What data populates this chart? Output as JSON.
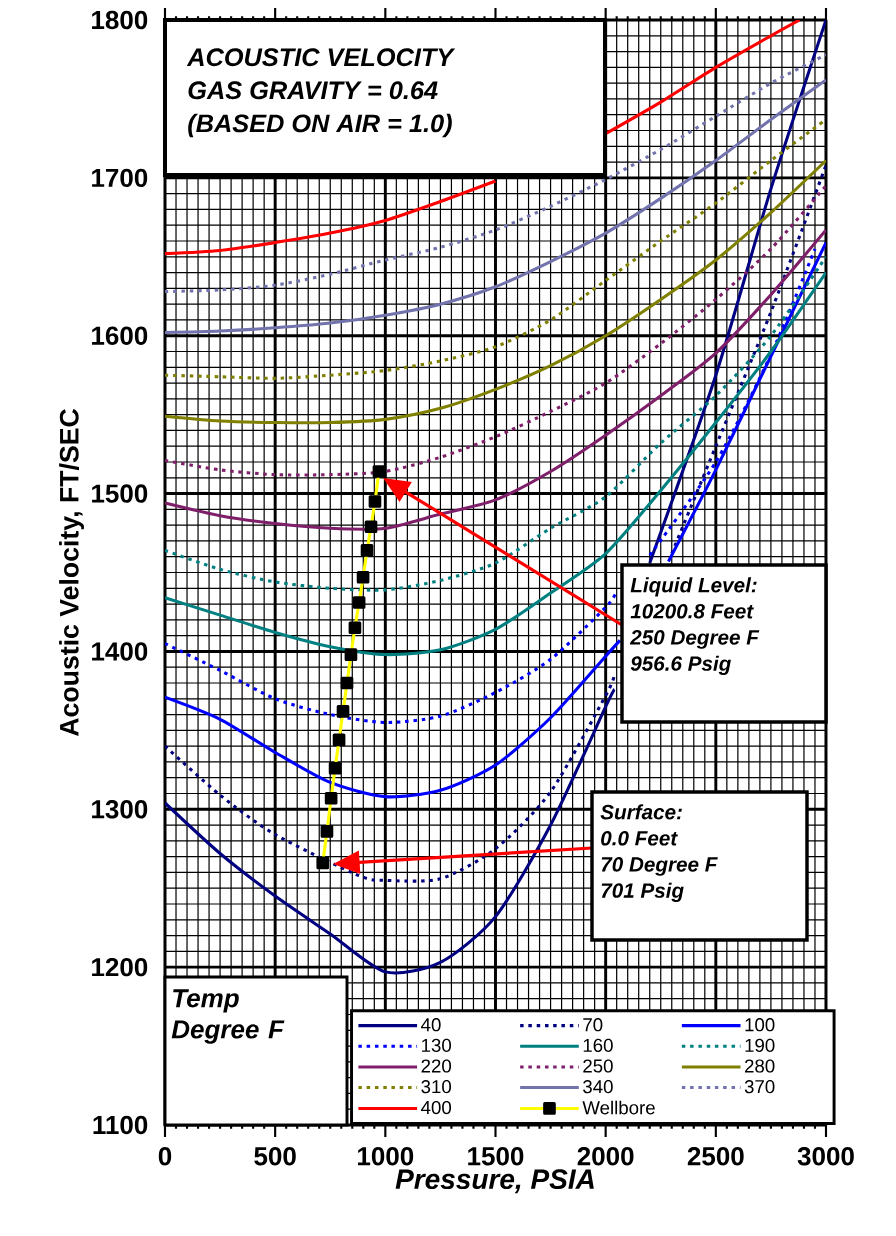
{
  "chart_data": {
    "type": "line",
    "title": "ACOUSTIC VELOCITY",
    "subtitle": "GAS GRAVITY = 0.64",
    "annotations": [
      "(BASED ON AIR = 1.0)",
      {
        "text": "Liquid Level:"
      },
      "10200.8 Feet",
      "250 Degree F",
      "956.6 Psig",
      {
        "text": "Surface:"
      },
      "0.0 Feet",
      "70 Degree F",
      "701 Psig"
    ],
    "xlabel": "Pressure, PSIA",
    "ylabel": "Acoustic Velocity, FT/SEC",
    "legend_title": "Temp Degree F",
    "xlim": [
      0,
      3000
    ],
    "ylim": [
      1100,
      1800
    ],
    "xticks": [
      0,
      500,
      1000,
      1500,
      2000,
      2500,
      3000
    ],
    "yticks": [
      1100,
      1200,
      1300,
      1400,
      1500,
      1600,
      1700,
      1800
    ],
    "grid": true,
    "legend": "bottom",
    "marker": "none",
    "line_style": "solid",
    "series": [
      {
        "name": "40",
        "color": "#000080",
        "x": [
          0,
          250,
          500,
          750,
          1000,
          1250,
          1500,
          1750,
          2000,
          2040,
          2130,
          2200,
          2500,
          2750,
          3000
        ],
        "values": [
          1304,
          1272,
          1245,
          1221,
          1197,
          1203,
          1232,
          1290,
          1365,
          1376,
          null,
          1456,
          1575,
          1693,
          1800
        ]
      },
      {
        "name": "70",
        "color": "#000080",
        "line_style": "dotted",
        "x": [
          0,
          250,
          500,
          880,
          1000,
          1250,
          1500,
          1750,
          2000,
          2040,
          2150,
          2300,
          2500,
          2750,
          3000
        ],
        "values": [
          1340,
          1309,
          1284,
          1258,
          1255,
          1256,
          1275,
          1311,
          1372,
          1385,
          null,
          1462,
          1530,
          1615,
          1708
        ]
      },
      {
        "name": "100",
        "color": "#0000ff",
        "x": [
          0,
          250,
          500,
          750,
          1000,
          1250,
          1500,
          1750,
          2000,
          2065,
          2150,
          2285,
          2500,
          2750,
          3000
        ],
        "values": [
          1371,
          1357,
          1336,
          1317,
          1308,
          1312,
          1328,
          1358,
          1397,
          1407,
          null,
          1457,
          1515,
          1587,
          1659
        ]
      },
      {
        "name": "130",
        "color": "#0000ff",
        "line_style": "dotted",
        "x": [
          0,
          250,
          500,
          750,
          1000,
          1250,
          1500,
          1750,
          2000,
          2050,
          2150,
          2200,
          2500,
          2750,
          2950
        ],
        "values": [
          1405,
          1388,
          1370,
          1360,
          1355,
          1359,
          1374,
          1395,
          1428,
          1438,
          null,
          1461,
          1520,
          1588,
          1655
        ]
      },
      {
        "name": "160",
        "color": "#008080",
        "x": [
          0,
          250,
          500,
          750,
          1000,
          1250,
          1500,
          1750,
          2000,
          2250,
          2500,
          2750,
          3000
        ],
        "values": [
          1434,
          1423,
          1412,
          1403,
          1398,
          1401,
          1414,
          1437,
          1462,
          1502,
          1545,
          1590,
          1640
        ]
      },
      {
        "name": "190",
        "color": "#008080",
        "line_style": "dotted",
        "x": [
          0,
          250,
          500,
          750,
          1000,
          1250,
          1500,
          1750,
          2000,
          2250,
          2500,
          2750,
          3000
        ],
        "values": [
          1464,
          1452,
          1444,
          1440,
          1439,
          1445,
          1456,
          1478,
          1498,
          1532,
          1562,
          1600,
          1650
        ]
      },
      {
        "name": "220",
        "color": "#7f1f6a",
        "x": [
          0,
          250,
          500,
          750,
          1000,
          1250,
          1500,
          1750,
          2000,
          2250,
          2500,
          2750,
          3000
        ],
        "values": [
          1494,
          1486,
          1481,
          1478,
          1478,
          1487,
          1496,
          1514,
          1537,
          1562,
          1589,
          1626,
          1667
        ]
      },
      {
        "name": "250",
        "color": "#7f1f6a",
        "line_style": "dotted",
        "x": [
          0,
          250,
          500,
          750,
          1000,
          1250,
          1500,
          1750,
          2000,
          2250,
          2500,
          2750,
          3000
        ],
        "values": [
          1521,
          1515,
          1512,
          1512,
          1514,
          1523,
          1536,
          1552,
          1570,
          1595,
          1623,
          1655,
          1695
        ]
      },
      {
        "name": "280",
        "color": "#808000",
        "x": [
          0,
          250,
          500,
          750,
          1000,
          1250,
          1500,
          1750,
          2000,
          2250,
          2500,
          2750,
          3000
        ],
        "values": [
          1549,
          1546,
          1545,
          1545,
          1547,
          1554,
          1566,
          1581,
          1600,
          1623,
          1648,
          1678,
          1711
        ]
      },
      {
        "name": "310",
        "color": "#808000",
        "line_style": "dotted",
        "x": [
          0,
          250,
          500,
          750,
          1000,
          1250,
          1500,
          1750,
          2000,
          2250,
          2500,
          2750,
          3000
        ],
        "values": [
          1575,
          1574,
          1573,
          1575,
          1578,
          1584,
          1593,
          1610,
          1635,
          1660,
          1684,
          1711,
          1737
        ]
      },
      {
        "name": "340",
        "color": "#7272ad",
        "x": [
          0,
          250,
          500,
          750,
          1000,
          1250,
          1500,
          1750,
          2000,
          2250,
          2500,
          2750,
          3000
        ],
        "values": [
          1602,
          1603,
          1605,
          1608,
          1613,
          1620,
          1631,
          1647,
          1665,
          1687,
          1711,
          1737,
          1762
        ]
      },
      {
        "name": "370",
        "color": "#7272ad",
        "line_style": "dotted",
        "x": [
          0,
          250,
          500,
          750,
          1000,
          1250,
          1500,
          1750,
          2000,
          2250,
          2500,
          2750,
          3000
        ],
        "values": [
          1628,
          1629,
          1632,
          1639,
          1648,
          1656,
          1667,
          1682,
          1699,
          1718,
          1739,
          1760,
          1778
        ]
      },
      {
        "name": "400",
        "color": "#ff0000",
        "x": [
          0,
          250,
          500,
          750,
          1000,
          1250,
          1500,
          1750,
          2000,
          2250,
          2500,
          2750,
          2880
        ],
        "values": [
          1652,
          1654,
          1659,
          1665,
          1673,
          1685,
          1698,
          null,
          1728,
          1748,
          1770,
          1790,
          1800
        ]
      },
      {
        "name": "Wellbore",
        "color": "#ffff00",
        "marker": "square",
        "x": [
          716,
          735,
          754,
          772,
          790,
          808,
          826,
          844,
          862,
          881,
          899,
          917,
          935,
          953,
          971
        ],
        "values": [
          1266,
          1286,
          1307,
          1326,
          1344,
          1362,
          1380,
          1398,
          1415,
          1431,
          1447,
          1464,
          1479,
          1495,
          1514
        ]
      }
    ]
  }
}
